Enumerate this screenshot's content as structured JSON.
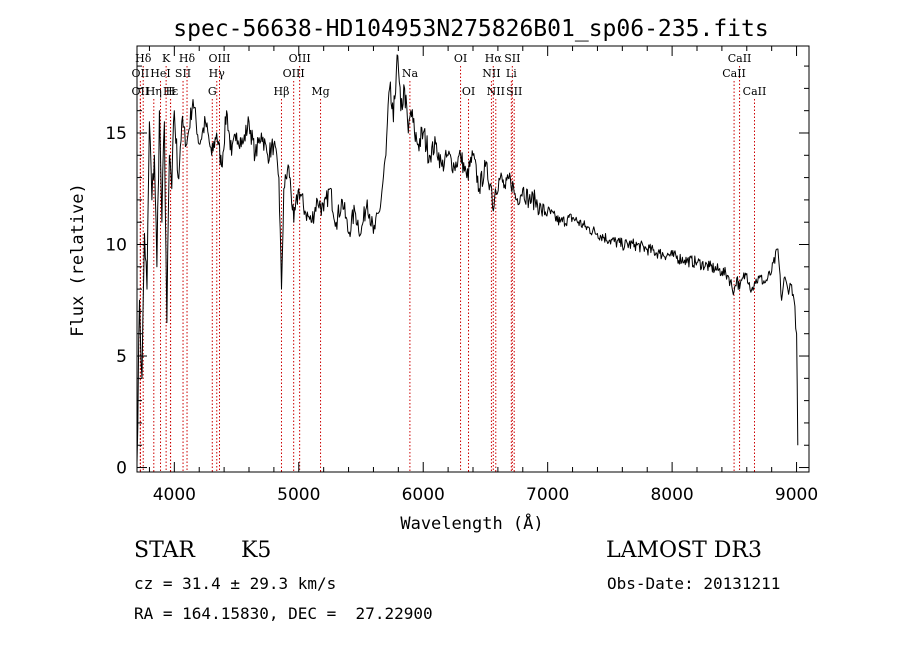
{
  "chart_data": {
    "type": "line",
    "title": "spec-56638-HD104953N275826B01_sp06-235.fits",
    "xlabel": "Wavelength (Å)",
    "ylabel": "Flux (relative)",
    "xlim": [
      3700,
      9100
    ],
    "ylim": [
      -0.2,
      18.9
    ],
    "xticks": [
      4000,
      5000,
      6000,
      7000,
      8000,
      9000
    ],
    "xtick_labels": [
      "4000",
      "5000",
      "6000",
      "7000",
      "8000",
      "9000"
    ],
    "yticks": [
      0,
      5,
      10,
      15
    ],
    "ytick_labels": [
      "0",
      "5",
      "10",
      "15"
    ],
    "grid": false,
    "line_color": "#000000",
    "marker_color": "#cc0000",
    "series": [
      {
        "name": "flux",
        "x": [
          3700,
          3720,
          3740,
          3760,
          3780,
          3800,
          3820,
          3840,
          3860,
          3880,
          3900,
          3920,
          3940,
          3960,
          3980,
          4000,
          4030,
          4060,
          4100,
          4150,
          4200,
          4250,
          4300,
          4340,
          4380,
          4420,
          4460,
          4500,
          4550,
          4600,
          4650,
          4700,
          4750,
          4800,
          4840,
          4861,
          4880,
          4920,
          4960,
          5000,
          5050,
          5100,
          5150,
          5200,
          5250,
          5300,
          5350,
          5400,
          5450,
          5500,
          5550,
          5600,
          5650,
          5700,
          5730,
          5760,
          5790,
          5820,
          5850,
          5880,
          5900,
          5930,
          5960,
          6000,
          6050,
          6100,
          6150,
          6200,
          6250,
          6300,
          6350,
          6400,
          6450,
          6500,
          6550,
          6563,
          6580,
          6620,
          6660,
          6700,
          6750,
          6800,
          6850,
          6900,
          6950,
          7000,
          7100,
          7200,
          7300,
          7400,
          7500,
          7600,
          7700,
          7800,
          7900,
          8000,
          8100,
          8200,
          8300,
          8400,
          8450,
          8498,
          8520,
          8542,
          8570,
          8600,
          8620,
          8640,
          8662,
          8700,
          8750,
          8800,
          8850,
          8880,
          8900,
          8930,
          8960,
          8980,
          9000,
          9010
        ],
        "y": [
          0.2,
          7.5,
          4.0,
          10.5,
          8.0,
          15.5,
          12.0,
          14.0,
          9.0,
          16.0,
          11.0,
          15.5,
          6.5,
          14.0,
          12.5,
          16.0,
          13.0,
          15.5,
          14.5,
          16.5,
          14.5,
          15.5,
          14.0,
          15.0,
          13.5,
          16.0,
          14.0,
          15.0,
          14.5,
          15.5,
          14.0,
          15.0,
          14.0,
          14.5,
          13.0,
          8.0,
          12.5,
          13.5,
          11.0,
          12.5,
          11.5,
          11.0,
          12.0,
          11.5,
          12.5,
          11.0,
          12.0,
          10.5,
          11.5,
          10.5,
          12.0,
          10.5,
          11.5,
          14.0,
          17.0,
          15.5,
          18.5,
          16.0,
          17.0,
          15.0,
          16.0,
          15.0,
          14.5,
          15.0,
          14.0,
          14.5,
          13.5,
          14.0,
          13.5,
          14.0,
          13.0,
          14.0,
          12.5,
          13.5,
          12.5,
          11.5,
          12.5,
          13.0,
          12.5,
          13.0,
          12.0,
          12.5,
          12.0,
          12.0,
          11.5,
          11.5,
          11.0,
          11.2,
          10.8,
          10.5,
          10.2,
          10.0,
          10.0,
          9.8,
          9.6,
          9.5,
          9.3,
          9.2,
          9.0,
          8.8,
          8.6,
          7.9,
          8.5,
          8.0,
          8.5,
          8.7,
          8.3,
          8.0,
          8.3,
          8.5,
          8.3,
          8.8,
          9.8,
          7.5,
          8.5,
          8.0,
          8.2,
          7.5,
          6.0,
          1.0
        ]
      }
    ],
    "lines": [
      {
        "name": "Hδ",
        "wl": 3750,
        "row": 1
      },
      {
        "name": "OII",
        "wl": 3727,
        "row": 2
      },
      {
        "name": "OII",
        "wl": 3727,
        "row": 3
      },
      {
        "name": "Hε",
        "wl": 3970,
        "row": 3
      },
      {
        "name": "K",
        "wl": 3934,
        "row": 1
      },
      {
        "name": "HeI",
        "wl": 3889,
        "row": 2
      },
      {
        "name": "SII",
        "wl": 4070,
        "row": 2
      },
      {
        "name": "Hη",
        "wl": 3835,
        "row": 3
      },
      {
        "name": "H",
        "wl": 3969,
        "row": 3
      },
      {
        "name": "Hδ",
        "wl": 4102,
        "row": 1
      },
      {
        "name": "OIII",
        "wl": 4363,
        "row": 1
      },
      {
        "name": "Hγ",
        "wl": 4341,
        "row": 2
      },
      {
        "name": "G",
        "wl": 4305,
        "row": 3
      },
      {
        "name": "Hβ",
        "wl": 4861,
        "row": 3
      },
      {
        "name": "OIII",
        "wl": 5007,
        "row": 1
      },
      {
        "name": "OIII",
        "wl": 4959,
        "row": 2
      },
      {
        "name": "Mg",
        "wl": 5175,
        "row": 3
      },
      {
        "name": "Na",
        "wl": 5893,
        "row": 2
      },
      {
        "name": "OI",
        "wl": 6300,
        "row": 1
      },
      {
        "name": "OI",
        "wl": 6364,
        "row": 3
      },
      {
        "name": "Hα",
        "wl": 6563,
        "row": 1
      },
      {
        "name": "SII",
        "wl": 6716,
        "row": 1
      },
      {
        "name": "NII",
        "wl": 6548,
        "row": 2
      },
      {
        "name": "Li",
        "wl": 6708,
        "row": 2
      },
      {
        "name": "NII",
        "wl": 6583,
        "row": 3
      },
      {
        "name": "SII",
        "wl": 6731,
        "row": 3
      },
      {
        "name": "CaII",
        "wl": 8542,
        "row": 1
      },
      {
        "name": "CaII",
        "wl": 8498,
        "row": 2
      },
      {
        "name": "CaII",
        "wl": 8662,
        "row": 3
      }
    ]
  },
  "info": {
    "class_label": "STAR",
    "subclass_label": "K5",
    "survey": "LAMOST DR3",
    "cz_line": "cz = 31.4 ± 29.3 km/s",
    "obs_date_line": "Obs-Date: 20131211",
    "radec_line": "RA = 164.15830, DEC =  27.22900"
  }
}
